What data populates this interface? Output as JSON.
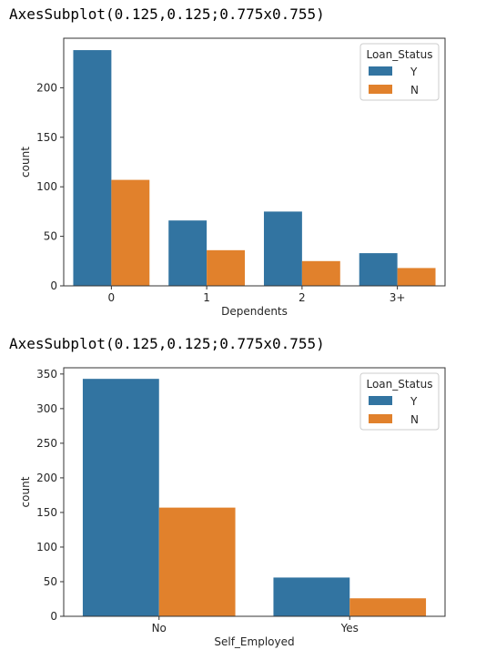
{
  "outputs": [
    {
      "repr": "AxesSubplot(0.125,0.125;0.775x0.755)"
    },
    {
      "repr": "AxesSubplot(0.125,0.125;0.775x0.755)"
    }
  ],
  "colors": {
    "Y": "#3274a1",
    "N": "#e1812c"
  },
  "chart_data": [
    {
      "type": "bar",
      "xlabel": "Dependents",
      "ylabel": "count",
      "categories": [
        "0",
        "1",
        "2",
        "3+"
      ],
      "series": [
        {
          "name": "Y",
          "values": [
            238,
            66,
            75,
            33
          ]
        },
        {
          "name": "N",
          "values": [
            107,
            36,
            25,
            18
          ]
        }
      ],
      "ylim": [
        0,
        250
      ],
      "yticks": [
        0,
        50,
        100,
        150,
        200
      ],
      "legend": {
        "title": "Loan_Status",
        "placement": "top-right"
      },
      "grid": false
    },
    {
      "type": "bar",
      "xlabel": "Self_Employed",
      "ylabel": "count",
      "categories": [
        "No",
        "Yes"
      ],
      "series": [
        {
          "name": "Y",
          "values": [
            343,
            56
          ]
        },
        {
          "name": "N",
          "values": [
            157,
            26
          ]
        }
      ],
      "ylim": [
        0,
        359
      ],
      "yticks": [
        0,
        50,
        100,
        150,
        200,
        250,
        300,
        350
      ],
      "legend": {
        "title": "Loan_Status",
        "placement": "top-right"
      },
      "grid": false
    }
  ]
}
